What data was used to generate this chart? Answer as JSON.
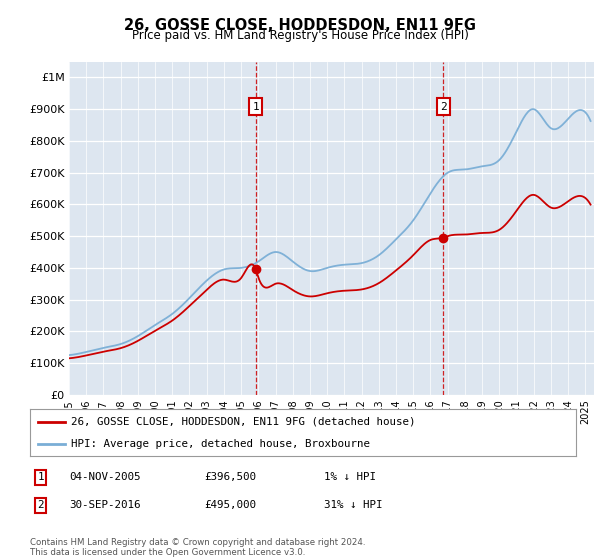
{
  "title": "26, GOSSE CLOSE, HODDESDON, EN11 9FG",
  "subtitle": "Price paid vs. HM Land Registry's House Price Index (HPI)",
  "background_color": "#dde6f0",
  "ylim": [
    0,
    1050000
  ],
  "yticks": [
    0,
    100000,
    200000,
    300000,
    400000,
    500000,
    600000,
    700000,
    800000,
    900000,
    1000000
  ],
  "ytick_labels": [
    "£0",
    "£100K",
    "£200K",
    "£300K",
    "£400K",
    "£500K",
    "£600K",
    "£700K",
    "£800K",
    "£900K",
    "£1M"
  ],
  "sale1_date": 2005.84,
  "sale1_price": 396500,
  "sale2_date": 2016.75,
  "sale2_price": 495000,
  "legend_red_label": "26, GOSSE CLOSE, HODDESDON, EN11 9FG (detached house)",
  "legend_blue_label": "HPI: Average price, detached house, Broxbourne",
  "footer": "Contains HM Land Registry data © Crown copyright and database right 2024.\nThis data is licensed under the Open Government Licence v3.0.",
  "red_color": "#cc0000",
  "blue_color": "#7aaed6",
  "dashed_color": "#cc0000",
  "xmin": 1995.0,
  "xmax": 2025.5,
  "hpi_years": [
    1995,
    1996,
    1997,
    1998,
    1999,
    2000,
    2001,
    2002,
    2003,
    2004,
    2005,
    2006,
    2007,
    2008,
    2009,
    2010,
    2011,
    2012,
    2013,
    2014,
    2015,
    2016,
    2017,
    2018,
    2019,
    2020,
    2021,
    2022,
    2023,
    2024,
    2025
  ],
  "hpi_prices": [
    125000,
    135000,
    148000,
    160000,
    185000,
    220000,
    255000,
    305000,
    360000,
    395000,
    400000,
    420000,
    450000,
    420000,
    390000,
    400000,
    410000,
    415000,
    440000,
    490000,
    550000,
    635000,
    700000,
    710000,
    720000,
    740000,
    830000,
    900000,
    840000,
    870000,
    890000
  ],
  "red_years": [
    1995,
    1996,
    1997,
    1998,
    1999,
    2000,
    2001,
    2002,
    2003,
    2004,
    2005,
    2005.84,
    2006,
    2007,
    2008,
    2009,
    2010,
    2011,
    2012,
    2013,
    2014,
    2015,
    2016,
    2016.75,
    2017,
    2018,
    2019,
    2020,
    2021,
    2022,
    2023,
    2024,
    2025
  ],
  "red_prices": [
    115000,
    124000,
    136000,
    147000,
    170000,
    202000,
    234000,
    280000,
    331000,
    363000,
    368000,
    396500,
    370000,
    350000,
    330000,
    310000,
    320000,
    328000,
    332000,
    352000,
    392000,
    440000,
    488000,
    495000,
    500000,
    505000,
    510000,
    520000,
    580000,
    630000,
    590000,
    610000,
    620000
  ]
}
